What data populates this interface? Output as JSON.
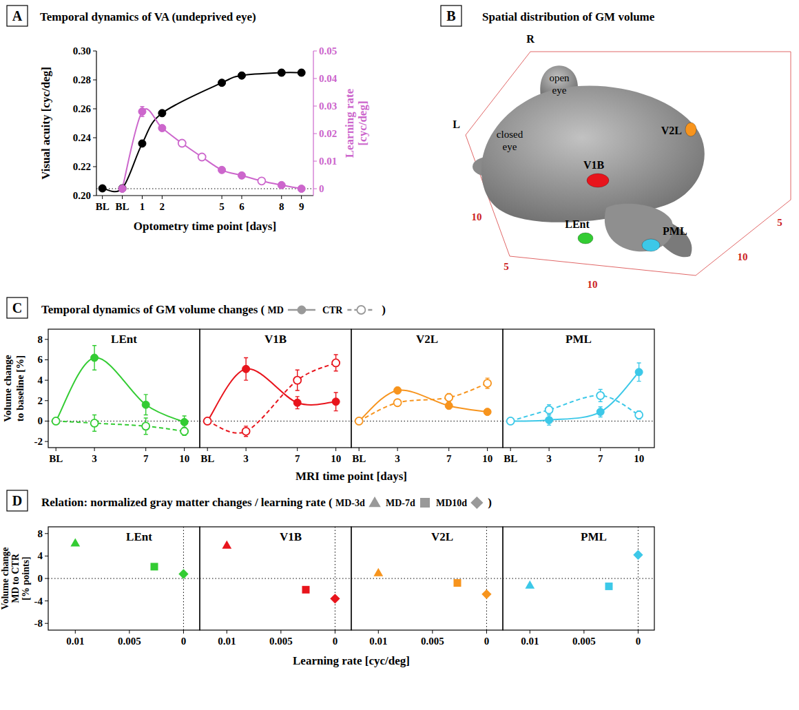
{
  "figure": {
    "panels": [
      {
        "letter": "A",
        "title": "Temporal dynamics of VA (undeprived eye)"
      },
      {
        "letter": "B",
        "title": "Spatial distribution of GM volume"
      },
      {
        "letter": "C",
        "title": "Temporal dynamics of GM volume changes (",
        "title_end": ")",
        "y_label": [
          "Volume change",
          "to baseline [%]"
        ],
        "x_label": "MRI time point [days]"
      },
      {
        "letter": "D",
        "title": "Relation: normalized gray matter changes / learning rate (",
        "title_end": ")",
        "y_label": [
          "Volume change",
          "MD to CTR",
          "[% points]"
        ],
        "x_label": "Learning rate [cyc/deg]"
      }
    ],
    "brain": {
      "orientation_labels": [
        "R",
        "L"
      ],
      "eye_labels": [
        "open eye",
        "closed eye"
      ],
      "regions": [
        {
          "label": "V1B",
          "color": "#e8141c"
        },
        {
          "label": "V2L",
          "color": "#f7941d"
        },
        {
          "label": "LEnt",
          "color": "#33cc33"
        },
        {
          "label": "PML",
          "color": "#3cc8e8"
        }
      ],
      "axis_ticks": [
        10,
        5,
        10,
        10,
        5
      ]
    }
  },
  "chart_data": [
    {
      "type": "line",
      "x_label": "Optometry time point [days]",
      "y_label": "Visual acuity [cyc/deg]",
      "y2_label": [
        "Learning rate",
        "[cyc/deg]"
      ],
      "xlim": [
        -1.3,
        9.6
      ],
      "xticks": [
        {
          "value": -1,
          "label": "BL"
        },
        {
          "value": 0,
          "label": "BL"
        },
        1,
        2,
        5,
        6,
        8,
        9
      ],
      "ylim": [
        0.2,
        0.3
      ],
      "yticks": [
        {
          "value": 0.2,
          "label": "0.20"
        },
        0.22,
        0.24,
        0.26,
        0.28,
        {
          "value": 0.3,
          "label": "0.30"
        }
      ],
      "y2lim": [
        -0.0025,
        0.05
      ],
      "y2ticks": [
        0,
        0.01,
        0.02,
        0.03,
        0.04,
        0.05
      ],
      "series": [
        {
          "color": "#000000",
          "type": "line",
          "marker": "circle",
          "line_style": "solid",
          "x": [
            -1,
            0,
            1,
            2,
            5,
            6,
            8,
            9
          ],
          "values": [
            0.205,
            0.205,
            0.236,
            0.257,
            0.278,
            0.283,
            0.285,
            0.285
          ],
          "errors": [
            0.0015,
            0.0015,
            0.002,
            0.002,
            0.002,
            0.002,
            0.002,
            0.002
          ]
        },
        {
          "color": "#cc66cc",
          "type": "line",
          "marker": "none",
          "line_style": "solid",
          "axis": "y2",
          "x": [
            0,
            1,
            2,
            3,
            4,
            5,
            6,
            7,
            8,
            9
          ],
          "values": [
            0,
            0.028,
            0.022,
            0.0165,
            0.0115,
            0.0068,
            0.0048,
            0.0028,
            0.0013,
            0
          ]
        },
        {
          "color": "#cc66cc",
          "type": "scatter",
          "marker": "circle",
          "axis": "y2",
          "x": [
            0,
            1,
            2,
            5,
            6,
            8,
            9
          ],
          "values": [
            0,
            0.028,
            0.022,
            0.0068,
            0.0048,
            0.0013,
            0
          ],
          "errors": [
            0.0005,
            0.0018,
            0.001,
            0.0005,
            0.0005,
            0.0005,
            0.0005
          ]
        },
        {
          "color": "#cc66cc",
          "type": "scatter",
          "marker": "open-circle",
          "axis": "y2",
          "x": [
            3,
            4,
            7
          ],
          "values": [
            0.0165,
            0.0115,
            0.0028
          ]
        }
      ]
    },
    {
      "type": "line",
      "title": "LEnt",
      "legend": "top",
      "x": [
        0,
        3,
        7,
        10
      ],
      "xlim": [
        -0.6,
        11.2
      ],
      "xticks": [
        {
          "value": 0,
          "label": "BL"
        },
        3,
        7,
        10
      ],
      "ylim": [
        -2.6,
        9
      ],
      "yticks": [
        -2,
        0,
        2,
        4,
        6,
        8
      ],
      "series": [
        {
          "name": "MD",
          "color": "#33cc33",
          "marker": "circle",
          "line_style": "solid",
          "values": [
            0,
            6.2,
            1.6,
            -0.1
          ],
          "errors": [
            0,
            1.2,
            1.0,
            0.6
          ]
        },
        {
          "name": "CTR",
          "color": "#33cc33",
          "marker": "open-circle",
          "line_style": "dashed",
          "values": [
            0,
            -0.2,
            -0.5,
            -1.0
          ],
          "errors": [
            0,
            0.8,
            0.8,
            0.4
          ]
        }
      ]
    },
    {
      "type": "line",
      "title": "V1B",
      "tick_labels": "x",
      "x": [
        0,
        3,
        7,
        10
      ],
      "xlim": [
        -0.6,
        11.2
      ],
      "xticks": [
        {
          "value": 0,
          "label": "BL"
        },
        3,
        7,
        10
      ],
      "ylim": [
        -2.6,
        9
      ],
      "yticks": [
        -2,
        0,
        2,
        4,
        6,
        8
      ],
      "series": [
        {
          "name": "MD",
          "color": "#e8141c",
          "marker": "circle",
          "line_style": "solid",
          "values": [
            0,
            5.1,
            1.8,
            1.9
          ],
          "errors": [
            0,
            1.1,
            0.6,
            0.9
          ]
        },
        {
          "name": "CTR",
          "color": "#e8141c",
          "marker": "open-circle",
          "line_style": "dashed",
          "values": [
            0,
            -1.0,
            4.0,
            5.7
          ],
          "errors": [
            0,
            0.5,
            1.0,
            0.8
          ]
        }
      ]
    },
    {
      "type": "line",
      "title": "V2L",
      "tick_labels": "x",
      "x": [
        0,
        3,
        7,
        10
      ],
      "xlim": [
        -0.6,
        11.2
      ],
      "xticks": [
        {
          "value": 0,
          "label": "BL"
        },
        3,
        7,
        10
      ],
      "ylim": [
        -2.6,
        9
      ],
      "yticks": [
        -2,
        0,
        2,
        4,
        6,
        8
      ],
      "series": [
        {
          "name": "MD",
          "color": "#f7941d",
          "marker": "circle",
          "line_style": "solid",
          "values": [
            0,
            3.0,
            1.5,
            0.9
          ],
          "errors": [
            0,
            0.3,
            0.3,
            0.2
          ]
        },
        {
          "name": "CTR",
          "color": "#f7941d",
          "marker": "open-circle",
          "line_style": "dashed",
          "values": [
            0,
            1.8,
            2.3,
            3.7
          ],
          "errors": [
            0,
            0.2,
            0.4,
            0.5
          ]
        }
      ]
    },
    {
      "type": "line",
      "title": "PML",
      "tick_labels": "x",
      "x": [
        0,
        3,
        7,
        10
      ],
      "xlim": [
        -0.6,
        11.2
      ],
      "xticks": [
        {
          "value": 0,
          "label": "BL"
        },
        3,
        7,
        10
      ],
      "ylim": [
        -2.6,
        9
      ],
      "yticks": [
        -2,
        0,
        2,
        4,
        6,
        8
      ],
      "series": [
        {
          "name": "MD",
          "color": "#3cc8e8",
          "marker": "circle",
          "line_style": "solid",
          "values": [
            0,
            0.1,
            0.9,
            4.8
          ],
          "errors": [
            0,
            0.5,
            0.5,
            0.9
          ]
        },
        {
          "name": "CTR",
          "color": "#3cc8e8",
          "marker": "open-circle",
          "line_style": "dashed",
          "values": [
            0,
            1.1,
            2.5,
            0.6
          ],
          "errors": [
            0,
            0.5,
            0.6,
            0.4
          ]
        }
      ]
    },
    {
      "type": "scatter",
      "title": "LEnt",
      "legend": "top",
      "xlim": [
        0.0125,
        -0.0015
      ],
      "xticks": [
        0.01,
        0.005,
        0
      ],
      "ylim": [
        -9.2,
        9.2
      ],
      "yticks": [
        -8,
        -4,
        0,
        4,
        8
      ],
      "series": [
        {
          "name": "MD-3d",
          "color": "#33cc33",
          "marker": "triangle",
          "x": [
            0.01
          ],
          "values": [
            6.3
          ]
        },
        {
          "name": "MD-7d",
          "color": "#33cc33",
          "marker": "square",
          "x": [
            0.0027
          ],
          "values": [
            2.1
          ]
        },
        {
          "name": "MD10d",
          "color": "#33cc33",
          "marker": "diamond",
          "x": [
            0
          ],
          "values": [
            0.8
          ]
        }
      ]
    },
    {
      "type": "scatter",
      "title": "V1B",
      "tick_labels": "x",
      "xlim": [
        0.0125,
        -0.0015
      ],
      "xticks": [
        0.01,
        0.005,
        0
      ],
      "ylim": [
        -9.2,
        9.2
      ],
      "yticks": [
        -8,
        -4,
        0,
        4,
        8
      ],
      "series": [
        {
          "name": "MD-3d",
          "color": "#e8141c",
          "marker": "triangle",
          "x": [
            0.01
          ],
          "values": [
            5.9
          ]
        },
        {
          "name": "MD-7d",
          "color": "#e8141c",
          "marker": "square",
          "x": [
            0.0027
          ],
          "values": [
            -2.0
          ]
        },
        {
          "name": "MD10d",
          "color": "#e8141c",
          "marker": "diamond",
          "x": [
            0
          ],
          "values": [
            -3.6
          ]
        }
      ]
    },
    {
      "type": "scatter",
      "title": "V2L",
      "tick_labels": "x",
      "xlim": [
        0.0125,
        -0.0015
      ],
      "xticks": [
        0.01,
        0.005,
        0
      ],
      "ylim": [
        -9.2,
        9.2
      ],
      "yticks": [
        -8,
        -4,
        0,
        4,
        8
      ],
      "series": [
        {
          "name": "MD-3d",
          "color": "#f7941d",
          "marker": "triangle",
          "x": [
            0.01
          ],
          "values": [
            1.0
          ]
        },
        {
          "name": "MD-7d",
          "color": "#f7941d",
          "marker": "square",
          "x": [
            0.0027
          ],
          "values": [
            -0.8
          ]
        },
        {
          "name": "MD10d",
          "color": "#f7941d",
          "marker": "diamond",
          "x": [
            0
          ],
          "values": [
            -2.8
          ]
        }
      ]
    },
    {
      "type": "scatter",
      "title": "PML",
      "tick_labels": "x",
      "xlim": [
        0.0125,
        -0.0015
      ],
      "xticks": [
        0.01,
        0.005,
        0
      ],
      "ylim": [
        -9.2,
        9.2
      ],
      "yticks": [
        -8,
        -4,
        0,
        4,
        8
      ],
      "series": [
        {
          "name": "MD-3d",
          "color": "#3cc8e8",
          "marker": "triangle",
          "x": [
            0.01
          ],
          "values": [
            -1.2
          ]
        },
        {
          "name": "MD-7d",
          "color": "#3cc8e8",
          "marker": "square",
          "x": [
            0.0027
          ],
          "values": [
            -1.4
          ]
        },
        {
          "name": "MD10d",
          "color": "#3cc8e8",
          "marker": "diamond",
          "x": [
            0
          ],
          "values": [
            4.2
          ]
        }
      ]
    }
  ]
}
